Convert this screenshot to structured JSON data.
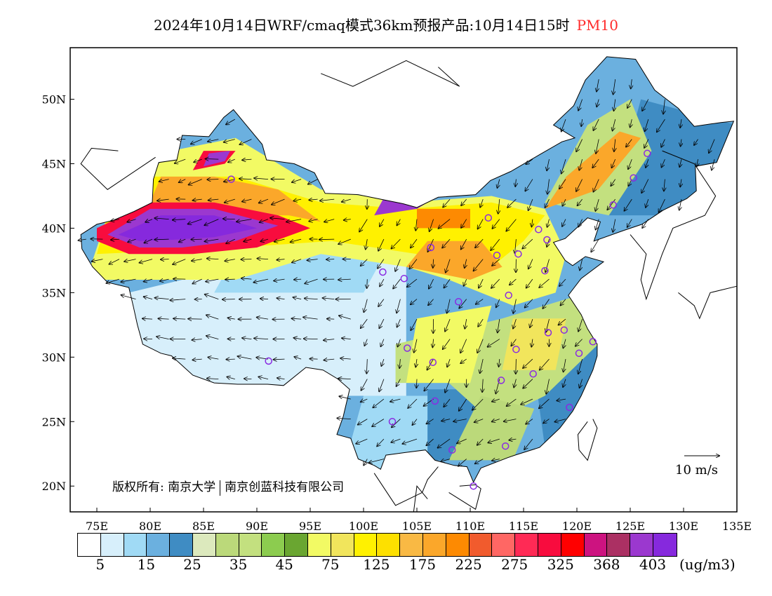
{
  "title": {
    "main": "2024年10月14日WRF/cmaq模式36km预报产品:10月14日15时",
    "variable": "PM10"
  },
  "axes": {
    "lat_ticks": [
      "50N",
      "45N",
      "40N",
      "35N",
      "30N",
      "25N",
      "20N"
    ],
    "lon_ticks": [
      "75E",
      "80E",
      "85E",
      "90E",
      "95E",
      "100E",
      "105E",
      "110E",
      "115E",
      "120E",
      "125E",
      "130E",
      "135E"
    ],
    "lon_range": [
      72.5,
      135
    ],
    "lat_range": [
      18,
      54
    ]
  },
  "copyright": {
    "label": "版权所有:",
    "org1": "南京大学",
    "org2": "南京创蓝科技有限公司"
  },
  "wind_reference": "10 m/s",
  "colorbar": {
    "colors": [
      "#ffffff",
      "#d7effb",
      "#a0daf5",
      "#6bb0df",
      "#3f8cc3",
      "#dce9bd",
      "#bbd97a",
      "#c3e07f",
      "#8ccc4f",
      "#6aa631",
      "#f2fa64",
      "#f1e55c",
      "#fff100",
      "#fde000",
      "#f9b944",
      "#fba72a",
      "#fd8a02",
      "#f15b2d",
      "#ff6764",
      "#ff2a55",
      "#f80c3e",
      "#ff0000",
      "#cd1380",
      "#ab3063",
      "#9b38cf",
      "#8629dd"
    ],
    "labels": [
      "5",
      "15",
      "25",
      "35",
      "45",
      "75",
      "125",
      "175",
      "225",
      "275",
      "325",
      "368",
      "403"
    ],
    "unit": "(ug/m3)"
  },
  "stations": [
    [
      87.6,
      43.8
    ],
    [
      91.1,
      29.7
    ],
    [
      101.8,
      36.6
    ],
    [
      103.8,
      36.1
    ],
    [
      106.3,
      38.5
    ],
    [
      111.7,
      40.8
    ],
    [
      112.5,
      37.9
    ],
    [
      114.5,
      38.0
    ],
    [
      116.4,
      39.9
    ],
    [
      117.2,
      39.1
    ],
    [
      117.0,
      36.7
    ],
    [
      113.6,
      34.8
    ],
    [
      108.9,
      34.3
    ],
    [
      104.1,
      30.7
    ],
    [
      106.5,
      29.6
    ],
    [
      114.3,
      30.6
    ],
    [
      117.3,
      31.9
    ],
    [
      118.8,
      32.1
    ],
    [
      120.2,
      30.3
    ],
    [
      121.5,
      31.2
    ],
    [
      115.9,
      28.7
    ],
    [
      112.9,
      28.2
    ],
    [
      119.3,
      26.1
    ],
    [
      106.7,
      26.6
    ],
    [
      102.7,
      25.0
    ],
    [
      108.3,
      22.8
    ],
    [
      113.3,
      23.1
    ],
    [
      110.3,
      20.0
    ],
    [
      123.4,
      41.8
    ],
    [
      125.3,
      43.9
    ],
    [
      126.6,
      45.8
    ]
  ]
}
